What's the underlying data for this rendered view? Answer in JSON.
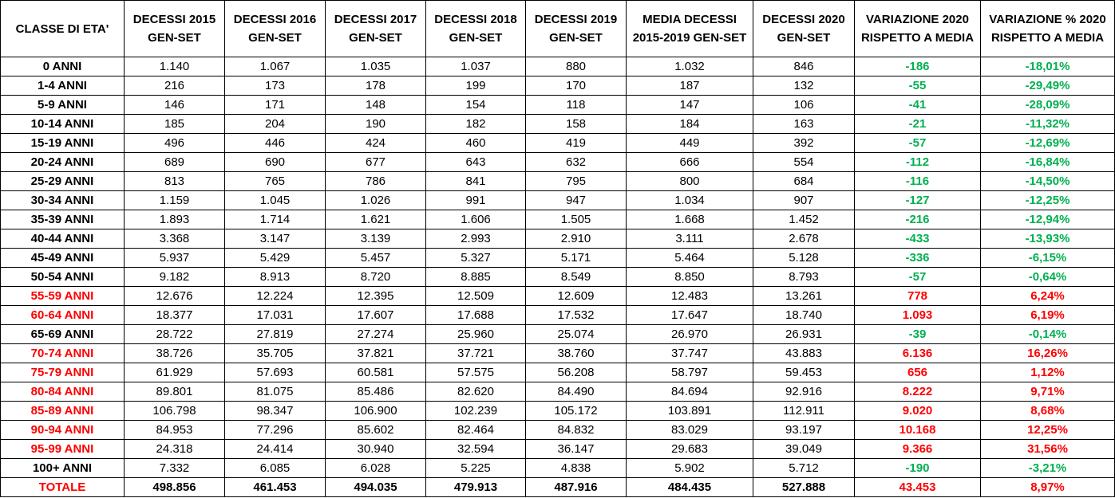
{
  "chart_data": {
    "type": "table",
    "colors": {
      "increase": "#ff0000",
      "decrease": "#00b050",
      "text": "#000000",
      "border": "#000000"
    },
    "columns": [
      "CLASSE DI ETA'",
      "DECESSI 2015 GEN-SET",
      "DECESSI 2016 GEN-SET",
      "DECESSI 2017 GEN-SET",
      "DECESSI 2018 GEN-SET",
      "DECESSI 2019 GEN-SET",
      "MEDIA DECESSI 2015-2019 GEN-SET",
      "DECESSI 2020 GEN-SET",
      "VARIAZIONE 2020 RISPETTO A MEDIA",
      "VARIAZIONE % 2020 RISPETTO A MEDIA"
    ],
    "header_lines": [
      [
        "CLASSE DI ETA'"
      ],
      [
        "DECESSI 2015",
        "GEN-SET"
      ],
      [
        "DECESSI 2016",
        "GEN-SET"
      ],
      [
        "DECESSI 2017",
        "GEN-SET"
      ],
      [
        "DECESSI 2018",
        "GEN-SET"
      ],
      [
        "DECESSI 2019",
        "GEN-SET"
      ],
      [
        "MEDIA DECESSI",
        "2015-2019 GEN-SET"
      ],
      [
        "DECESSI 2020",
        "GEN-SET"
      ],
      [
        "VARIAZIONE 2020",
        "RISPETTO A MEDIA"
      ],
      [
        "VARIAZIONE % 2020",
        "RISPETTO A MEDIA"
      ]
    ],
    "rows": [
      {
        "cells": [
          "0 ANNI",
          "1.140",
          "1.067",
          "1.035",
          "1.037",
          "880",
          "1.032",
          "846",
          "-186",
          "-18,01%"
        ],
        "increase": false
      },
      {
        "cells": [
          "1-4 ANNI",
          "216",
          "173",
          "178",
          "199",
          "170",
          "187",
          "132",
          "-55",
          "-29,49%"
        ],
        "increase": false
      },
      {
        "cells": [
          "5-9 ANNI",
          "146",
          "171",
          "148",
          "154",
          "118",
          "147",
          "106",
          "-41",
          "-28,09%"
        ],
        "increase": false
      },
      {
        "cells": [
          "10-14 ANNI",
          "185",
          "204",
          "190",
          "182",
          "158",
          "184",
          "163",
          "-21",
          "-11,32%"
        ],
        "increase": false
      },
      {
        "cells": [
          "15-19 ANNI",
          "496",
          "446",
          "424",
          "460",
          "419",
          "449",
          "392",
          "-57",
          "-12,69%"
        ],
        "increase": false
      },
      {
        "cells": [
          "20-24 ANNI",
          "689",
          "690",
          "677",
          "643",
          "632",
          "666",
          "554",
          "-112",
          "-16,84%"
        ],
        "increase": false
      },
      {
        "cells": [
          "25-29 ANNI",
          "813",
          "765",
          "786",
          "841",
          "795",
          "800",
          "684",
          "-116",
          "-14,50%"
        ],
        "increase": false
      },
      {
        "cells": [
          "30-34 ANNI",
          "1.159",
          "1.045",
          "1.026",
          "991",
          "947",
          "1.034",
          "907",
          "-127",
          "-12,25%"
        ],
        "increase": false
      },
      {
        "cells": [
          "35-39 ANNI",
          "1.893",
          "1.714",
          "1.621",
          "1.606",
          "1.505",
          "1.668",
          "1.452",
          "-216",
          "-12,94%"
        ],
        "increase": false
      },
      {
        "cells": [
          "40-44 ANNI",
          "3.368",
          "3.147",
          "3.139",
          "2.993",
          "2.910",
          "3.111",
          "2.678",
          "-433",
          "-13,93%"
        ],
        "increase": false
      },
      {
        "cells": [
          "45-49 ANNI",
          "5.937",
          "5.429",
          "5.457",
          "5.327",
          "5.171",
          "5.464",
          "5.128",
          "-336",
          "-6,15%"
        ],
        "increase": false
      },
      {
        "cells": [
          "50-54 ANNI",
          "9.182",
          "8.913",
          "8.720",
          "8.885",
          "8.549",
          "8.850",
          "8.793",
          "-57",
          "-0,64%"
        ],
        "increase": false
      },
      {
        "cells": [
          "55-59 ANNI",
          "12.676",
          "12.224",
          "12.395",
          "12.509",
          "12.609",
          "12.483",
          "13.261",
          "778",
          "6,24%"
        ],
        "increase": true
      },
      {
        "cells": [
          "60-64 ANNI",
          "18.377",
          "17.031",
          "17.607",
          "17.688",
          "17.532",
          "17.647",
          "18.740",
          "1.093",
          "6,19%"
        ],
        "increase": true
      },
      {
        "cells": [
          "65-69 ANNI",
          "28.722",
          "27.819",
          "27.274",
          "25.960",
          "25.074",
          "26.970",
          "26.931",
          "-39",
          "-0,14%"
        ],
        "increase": false
      },
      {
        "cells": [
          "70-74 ANNI",
          "38.726",
          "35.705",
          "37.821",
          "37.721",
          "38.760",
          "37.747",
          "43.883",
          "6.136",
          "16,26%"
        ],
        "increase": true
      },
      {
        "cells": [
          "75-79 ANNI",
          "61.929",
          "57.693",
          "60.581",
          "57.575",
          "56.208",
          "58.797",
          "59.453",
          "656",
          "1,12%"
        ],
        "increase": true
      },
      {
        "cells": [
          "80-84 ANNI",
          "89.801",
          "81.075",
          "85.486",
          "82.620",
          "84.490",
          "84.694",
          "92.916",
          "8.222",
          "9,71%"
        ],
        "increase": true
      },
      {
        "cells": [
          "85-89 ANNI",
          "106.798",
          "98.347",
          "106.900",
          "102.239",
          "105.172",
          "103.891",
          "112.911",
          "9.020",
          "8,68%"
        ],
        "increase": true
      },
      {
        "cells": [
          "90-94 ANNI",
          "84.953",
          "77.296",
          "85.602",
          "82.464",
          "84.832",
          "83.029",
          "93.197",
          "10.168",
          "12,25%"
        ],
        "increase": true
      },
      {
        "cells": [
          "95-99 ANNI",
          "24.318",
          "24.414",
          "30.940",
          "32.594",
          "36.147",
          "29.683",
          "39.049",
          "9.366",
          "31,56%"
        ],
        "increase": true
      },
      {
        "cells": [
          "100+ ANNI",
          "7.332",
          "6.085",
          "6.028",
          "5.225",
          "4.838",
          "5.902",
          "5.712",
          "-190",
          "-3,21%"
        ],
        "increase": false
      }
    ],
    "total": {
      "cells": [
        "TOTALE",
        "498.856",
        "461.453",
        "494.035",
        "479.913",
        "487.916",
        "484.435",
        "527.888",
        "43.453",
        "8,97%"
      ],
      "increase": true
    }
  }
}
